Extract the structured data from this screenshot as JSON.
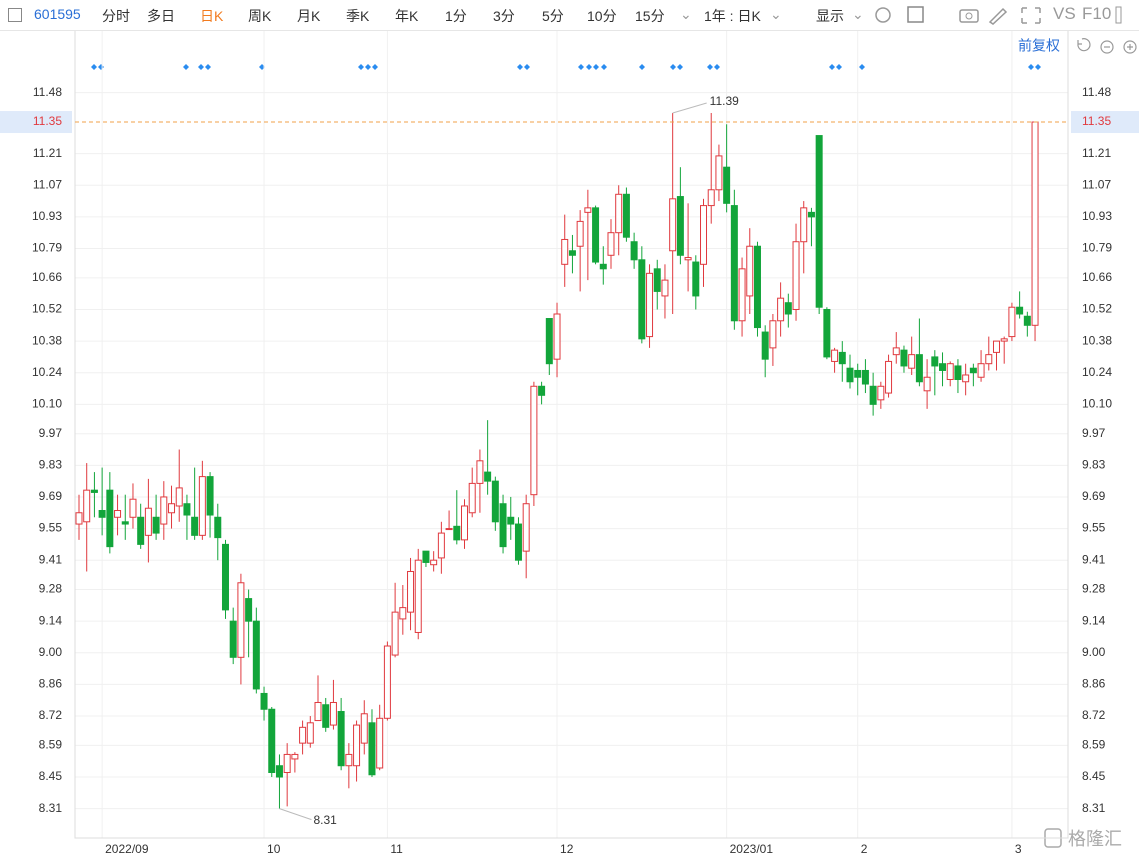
{
  "toolbar": {
    "code": "601595",
    "tabs": [
      "分时",
      "多日",
      "日K",
      "周K",
      "月K",
      "季K",
      "年K",
      "1分",
      "3分",
      "5分",
      "10分",
      "15分"
    ],
    "active_tab": "日K",
    "period": "1年 : 日K",
    "display": "显示",
    "vs": "VS",
    "f10": "F10",
    "adjust": "前复权"
  },
  "watermark": "格隆汇",
  "chart_data": {
    "type": "candlestick",
    "categories": [
      null,
      null,
      null,
      "2022/09",
      null,
      null,
      null,
      null,
      null,
      null,
      null,
      null,
      null,
      null,
      null,
      null,
      null,
      null,
      null,
      null,
      null,
      null,
      null,
      null,
      "10",
      null,
      null,
      null,
      null,
      null,
      null,
      null,
      null,
      null,
      null,
      null,
      null,
      null,
      null,
      null,
      "11",
      null,
      null,
      null,
      null,
      null,
      null,
      null,
      null,
      null,
      null,
      null,
      null,
      null,
      null,
      null,
      null,
      null,
      null,
      null,
      null,
      null,
      "12",
      null,
      null,
      null,
      null,
      null,
      null,
      null,
      null,
      null,
      null,
      null,
      null,
      null,
      null,
      null,
      null,
      null,
      null,
      null,
      null,
      null,
      "2023/01",
      null,
      null,
      null,
      null,
      null,
      null,
      null,
      null,
      null,
      null,
      null,
      null,
      null,
      null,
      null,
      null,
      "2",
      null,
      null,
      null,
      null,
      null,
      null,
      null,
      null,
      null,
      null,
      null,
      null,
      null,
      null,
      null,
      null,
      null,
      null,
      null,
      "3",
      null,
      null,
      null
    ],
    "open": [
      9.57,
      9.58,
      9.72,
      9.63,
      9.72,
      9.6,
      9.58,
      9.6,
      9.6,
      9.52,
      9.6,
      9.57,
      9.62,
      9.65,
      9.66,
      9.6,
      9.52,
      9.78,
      9.6,
      9.48,
      9.14,
      8.98,
      9.24,
      9.14,
      8.82,
      8.75,
      8.5,
      8.47,
      8.53,
      8.6,
      8.6,
      8.7,
      8.77,
      8.68,
      8.74,
      8.5,
      8.5,
      8.6,
      8.69,
      8.49,
      8.71,
      8.99,
      9.15,
      9.18,
      9.09,
      9.45,
      9.39,
      9.42,
      9.55,
      9.56,
      9.5,
      9.62,
      9.75,
      9.8,
      9.76,
      9.66,
      9.6,
      9.57,
      9.45,
      9.7,
      10.18,
      10.48,
      10.3,
      10.72,
      10.78,
      10.8,
      10.95,
      10.97,
      10.72,
      10.76,
      10.86,
      11.03,
      10.82,
      10.74,
      10.4,
      10.7,
      10.58,
      10.78,
      11.02,
      10.74,
      10.73,
      10.72,
      10.98,
      11.05,
      11.15,
      10.98,
      10.47,
      10.58,
      10.8,
      10.42,
      10.35,
      10.47,
      10.55,
      10.52,
      10.82,
      10.95,
      11.29,
      10.52,
      10.29,
      10.33,
      10.26,
      10.25,
      10.25,
      10.18,
      10.12,
      10.15,
      10.32,
      10.34,
      10.26,
      10.32,
      10.16,
      10.31,
      10.28,
      10.21,
      10.27,
      10.2,
      10.26,
      10.22,
      10.28,
      10.33,
      10.38,
      10.4,
      10.53,
      10.49,
      10.45
    ],
    "high": [
      9.7,
      9.84,
      9.8,
      9.82,
      9.8,
      9.7,
      9.7,
      9.75,
      9.66,
      9.77,
      9.7,
      9.76,
      9.74,
      9.9,
      9.7,
      9.82,
      9.85,
      9.8,
      9.66,
      9.5,
      9.2,
      9.35,
      9.28,
      9.2,
      8.85,
      8.76,
      8.55,
      8.6,
      8.56,
      8.7,
      8.72,
      8.9,
      8.8,
      8.88,
      8.8,
      8.6,
      8.7,
      8.79,
      8.75,
      8.77,
      9.05,
      9.31,
      9.3,
      9.42,
      9.46,
      9.45,
      9.45,
      9.58,
      9.63,
      9.72,
      9.68,
      9.82,
      9.9,
      10.03,
      9.78,
      9.7,
      9.69,
      9.6,
      9.7,
      10.2,
      10.2,
      10.48,
      10.55,
      10.94,
      10.85,
      10.96,
      11.05,
      10.98,
      10.8,
      10.92,
      11.07,
      11.06,
      10.86,
      10.8,
      10.72,
      10.74,
      10.72,
      11.39,
      11.15,
      10.99,
      10.76,
      11.01,
      11.39,
      11.25,
      11.34,
      11.05,
      10.75,
      10.88,
      10.82,
      10.45,
      10.5,
      10.64,
      10.59,
      10.9,
      11.0,
      10.97,
      11.29,
      10.53,
      10.35,
      10.38,
      10.32,
      10.28,
      10.3,
      10.24,
      10.2,
      10.32,
      10.42,
      10.36,
      10.4,
      10.48,
      10.3,
      10.34,
      10.33,
      10.29,
      10.3,
      10.28,
      10.28,
      10.34,
      10.4,
      10.38,
      10.4,
      10.55,
      10.6,
      10.51,
      11.35
    ],
    "low": [
      9.5,
      9.36,
      9.6,
      9.52,
      9.44,
      9.52,
      9.5,
      9.55,
      9.46,
      9.4,
      9.5,
      9.5,
      9.55,
      9.58,
      9.5,
      9.5,
      9.5,
      9.51,
      9.41,
      9.15,
      8.95,
      8.86,
      8.98,
      8.82,
      8.7,
      8.45,
      8.31,
      8.32,
      8.47,
      8.55,
      8.58,
      8.7,
      8.65,
      8.66,
      8.48,
      8.4,
      8.43,
      8.55,
      8.45,
      8.48,
      8.7,
      8.98,
      9.08,
      9.1,
      9.06,
      9.38,
      9.36,
      9.35,
      9.55,
      9.48,
      9.46,
      9.6,
      9.62,
      9.7,
      9.54,
      9.44,
      9.5,
      9.39,
      9.33,
      9.65,
      10.1,
      10.23,
      10.22,
      10.62,
      10.68,
      10.6,
      10.65,
      10.72,
      10.63,
      10.7,
      10.76,
      10.82,
      10.7,
      10.37,
      10.35,
      10.52,
      10.48,
      10.5,
      10.72,
      10.6,
      10.52,
      10.62,
      10.9,
      11.0,
      10.95,
      10.43,
      10.4,
      10.5,
      10.4,
      10.22,
      10.27,
      10.4,
      10.44,
      10.47,
      10.68,
      10.8,
      10.5,
      10.3,
      10.24,
      10.2,
      10.17,
      10.14,
      10.15,
      10.05,
      10.08,
      10.13,
      10.28,
      10.24,
      10.23,
      10.18,
      10.08,
      10.14,
      10.18,
      10.18,
      10.15,
      10.14,
      10.18,
      10.2,
      10.25,
      10.25,
      10.28,
      10.38,
      10.48,
      10.4,
      10.38
    ],
    "close": [
      9.62,
      9.72,
      9.71,
      9.6,
      9.47,
      9.63,
      9.57,
      9.68,
      9.48,
      9.64,
      9.53,
      9.69,
      9.66,
      9.73,
      9.61,
      9.52,
      9.78,
      9.61,
      9.51,
      9.19,
      8.98,
      9.31,
      9.14,
      8.84,
      8.75,
      8.47,
      8.45,
      8.55,
      8.55,
      8.67,
      8.69,
      8.78,
      8.67,
      8.78,
      8.5,
      8.55,
      8.68,
      8.73,
      8.46,
      8.71,
      9.03,
      9.18,
      9.2,
      9.36,
      9.41,
      9.4,
      9.41,
      9.53,
      9.55,
      9.5,
      9.65,
      9.75,
      9.85,
      9.76,
      9.58,
      9.47,
      9.57,
      9.41,
      9.66,
      10.18,
      10.14,
      10.28,
      10.5,
      10.83,
      10.76,
      10.91,
      10.97,
      10.73,
      10.7,
      10.86,
      11.03,
      10.84,
      10.74,
      10.39,
      10.68,
      10.6,
      10.65,
      11.01,
      10.76,
      10.75,
      10.58,
      10.98,
      11.05,
      11.2,
      10.99,
      10.47,
      10.7,
      10.8,
      10.44,
      10.3,
      10.47,
      10.57,
      10.5,
      10.82,
      10.97,
      10.93,
      10.53,
      10.31,
      10.34,
      10.28,
      10.2,
      10.22,
      10.19,
      10.1,
      10.18,
      10.29,
      10.35,
      10.27,
      10.32,
      10.2,
      10.22,
      10.27,
      10.25,
      10.28,
      10.21,
      10.23,
      10.24,
      10.28,
      10.32,
      10.38,
      10.39,
      10.53,
      10.5,
      10.45,
      11.35
    ],
    "up_color": "#e0393e",
    "down_color": "#12a53a",
    "grid": true,
    "last_price": 11.35,
    "last_price_color": "#f0a14a",
    "max_annotation": 11.39,
    "min_annotation": 8.31,
    "ylim": [
      8.18,
      11.66
    ],
    "yticks": [
      11.48,
      11.21,
      11.07,
      10.93,
      10.79,
      10.66,
      10.52,
      10.38,
      10.24,
      {
        "value": 10.1,
        "label": "10.10"
      },
      9.97,
      9.83,
      9.69,
      9.55,
      9.41,
      9.28,
      9.14,
      {
        "value": 9,
        "label": "9.00"
      },
      8.86,
      8.72,
      8.59,
      8.45,
      8.31
    ]
  }
}
